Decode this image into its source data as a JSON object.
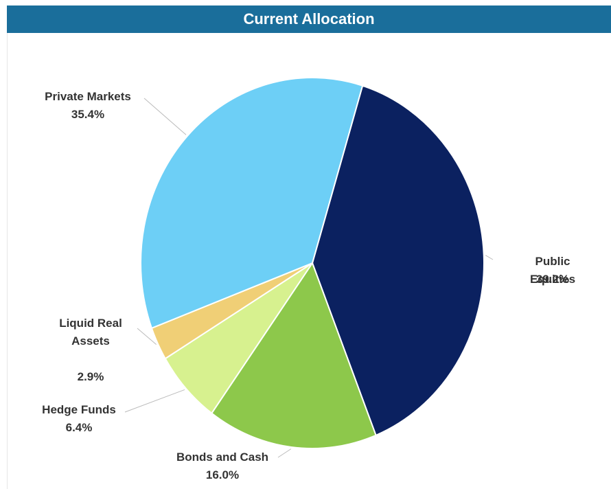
{
  "chart_data": {
    "type": "pie",
    "title": "Current Allocation",
    "categories": [
      "Public Equities",
      "Bonds and Cash",
      "Hedge Funds",
      "Liquid Real Assets",
      "Private Markets"
    ],
    "values": [
      39.2,
      16.0,
      6.4,
      2.9,
      35.4
    ],
    "value_labels": [
      "39.2%",
      "16.0%",
      "6.4%",
      "2.9%",
      "35.4%"
    ],
    "colors": [
      "#0b2160",
      "#8dc84b",
      "#d7f18f",
      "#f0cf76",
      "#6dcff6"
    ]
  }
}
